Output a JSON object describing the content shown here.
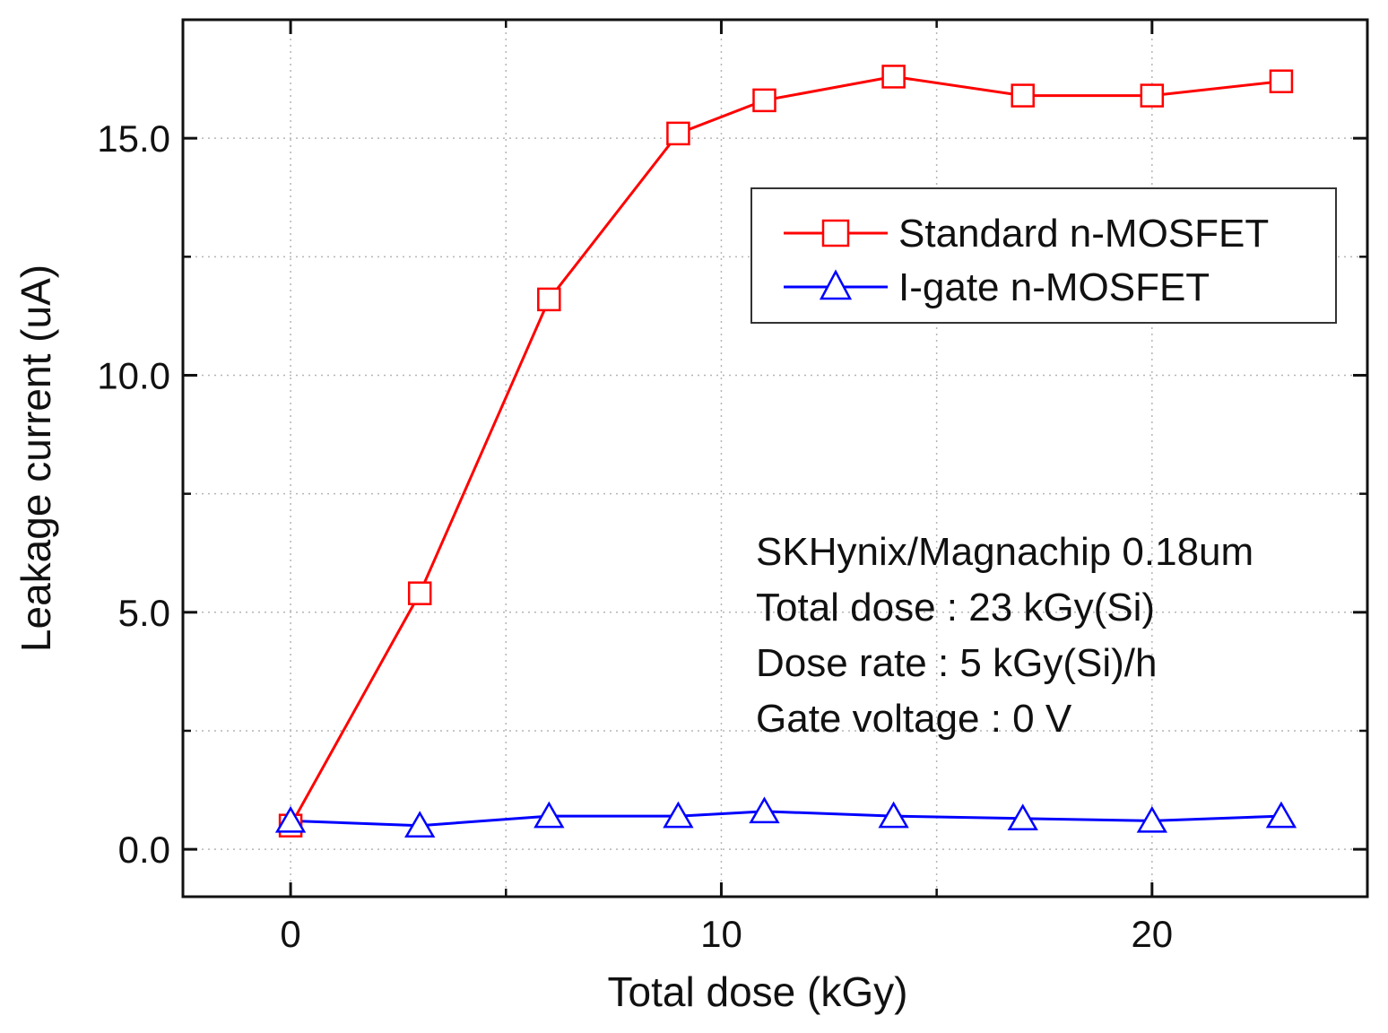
{
  "chart_data": {
    "type": "line",
    "title": "",
    "xlabel": "Total dose (kGy)",
    "ylabel": "Leakage current (uA)",
    "xlim": [
      -2.5,
      25
    ],
    "ylim": [
      -1.0,
      17.5
    ],
    "x_ticks": [
      0,
      10,
      20
    ],
    "x_tick_labels": [
      "0",
      "10",
      "20"
    ],
    "x_minor_ticks": [
      5,
      15
    ],
    "y_ticks": [
      0,
      5,
      10,
      15
    ],
    "y_tick_labels": [
      "0.0",
      "5.0",
      "10.0",
      "15.0"
    ],
    "y_minor_ticks": [
      2.5,
      7.5,
      12.5
    ],
    "grid": true,
    "legend_position": "top-right",
    "series": [
      {
        "name": "Standard n-MOSFET",
        "color": "#ff0000",
        "marker": "square",
        "x": [
          0,
          3,
          6,
          9,
          11,
          14,
          17,
          20,
          23
        ],
        "y": [
          0.5,
          5.4,
          11.6,
          15.1,
          15.8,
          16.3,
          15.9,
          15.9,
          16.2
        ]
      },
      {
        "name": "I-gate n-MOSFET",
        "color": "#0000ff",
        "marker": "triangle",
        "x": [
          0,
          3,
          6,
          9,
          11,
          14,
          17,
          20,
          23
        ],
        "y": [
          0.6,
          0.5,
          0.7,
          0.7,
          0.8,
          0.7,
          0.65,
          0.6,
          0.7
        ]
      }
    ],
    "annotations": [
      "SKHynix/Magnachip 0.18um",
      "Total dose : 23 kGy(Si)",
      "Dose rate : 5 kGy(Si)/h",
      "Gate voltage : 0 V"
    ]
  }
}
